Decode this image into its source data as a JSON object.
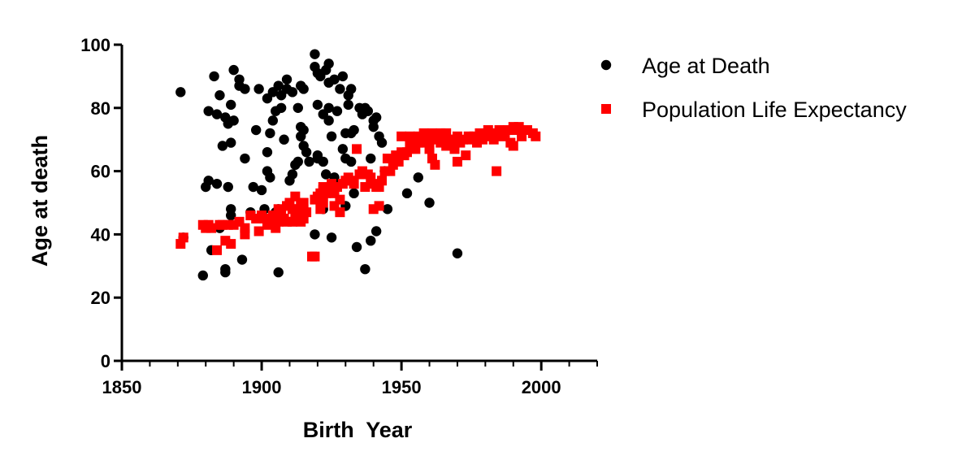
{
  "chart_data": {
    "type": "scatter",
    "xlabel": "Birth  Year",
    "ylabel": "Age at death",
    "xlim": [
      1850,
      2020
    ],
    "ylim": [
      0,
      100
    ],
    "x_ticks": [
      1850,
      1900,
      1950,
      2000
    ],
    "y_ticks": [
      0,
      20,
      40,
      60,
      80,
      100
    ],
    "x_minor_step": 10,
    "grid": false,
    "legend_position": "right",
    "series": [
      {
        "name": "Age at Death",
        "marker": "circle",
        "color": "#000000",
        "points": [
          [
            1871,
            85
          ],
          [
            1872,
            39
          ],
          [
            1879,
            27
          ],
          [
            1880,
            55
          ],
          [
            1881,
            57
          ],
          [
            1881,
            79
          ],
          [
            1882,
            35
          ],
          [
            1883,
            90
          ],
          [
            1884,
            56
          ],
          [
            1884,
            78
          ],
          [
            1885,
            84
          ],
          [
            1885,
            42
          ],
          [
            1886,
            68
          ],
          [
            1887,
            77
          ],
          [
            1887,
            29
          ],
          [
            1887,
            28
          ],
          [
            1888,
            75
          ],
          [
            1888,
            55
          ],
          [
            1889,
            81
          ],
          [
            1889,
            69
          ],
          [
            1889,
            48
          ],
          [
            1889,
            46
          ],
          [
            1890,
            92
          ],
          [
            1890,
            76
          ],
          [
            1892,
            87
          ],
          [
            1892,
            89
          ],
          [
            1893,
            32
          ],
          [
            1894,
            86
          ],
          [
            1894,
            64
          ],
          [
            1896,
            47
          ],
          [
            1897,
            55
          ],
          [
            1898,
            73
          ],
          [
            1899,
            86
          ],
          [
            1900,
            54
          ],
          [
            1901,
            48
          ],
          [
            1902,
            83
          ],
          [
            1902,
            60
          ],
          [
            1902,
            66
          ],
          [
            1903,
            58
          ],
          [
            1903,
            72
          ],
          [
            1904,
            85
          ],
          [
            1904,
            76
          ],
          [
            1905,
            79
          ],
          [
            1905,
            47
          ],
          [
            1906,
            87
          ],
          [
            1906,
            48
          ],
          [
            1906,
            28
          ],
          [
            1907,
            84
          ],
          [
            1907,
            80
          ],
          [
            1908,
            70
          ],
          [
            1909,
            89
          ],
          [
            1909,
            86
          ],
          [
            1910,
            57
          ],
          [
            1911,
            59
          ],
          [
            1911,
            85
          ],
          [
            1912,
            62
          ],
          [
            1913,
            80
          ],
          [
            1913,
            63
          ],
          [
            1914,
            87
          ],
          [
            1914,
            74
          ],
          [
            1914,
            71
          ],
          [
            1915,
            73
          ],
          [
            1915,
            68
          ],
          [
            1915,
            86
          ],
          [
            1916,
            66
          ],
          [
            1917,
            63
          ],
          [
            1919,
            93
          ],
          [
            1919,
            97
          ],
          [
            1919,
            40
          ],
          [
            1920,
            91
          ],
          [
            1920,
            81
          ],
          [
            1920,
            65
          ],
          [
            1920,
            64
          ],
          [
            1921,
            90
          ],
          [
            1922,
            63
          ],
          [
            1922,
            78
          ],
          [
            1922,
            48
          ],
          [
            1923,
            92
          ],
          [
            1923,
            59
          ],
          [
            1924,
            94
          ],
          [
            1924,
            88
          ],
          [
            1924,
            80
          ],
          [
            1924,
            76
          ],
          [
            1925,
            39
          ],
          [
            1925,
            71
          ],
          [
            1926,
            89
          ],
          [
            1926,
            58
          ],
          [
            1926,
            57
          ],
          [
            1927,
            79
          ],
          [
            1928,
            86
          ],
          [
            1929,
            90
          ],
          [
            1929,
            67
          ],
          [
            1930,
            72
          ],
          [
            1930,
            64
          ],
          [
            1930,
            49
          ],
          [
            1931,
            84
          ],
          [
            1931,
            81
          ],
          [
            1932,
            86
          ],
          [
            1932,
            72
          ],
          [
            1932,
            63
          ],
          [
            1933,
            73
          ],
          [
            1933,
            53
          ],
          [
            1934,
            36
          ],
          [
            1935,
            80
          ],
          [
            1936,
            78
          ],
          [
            1937,
            29
          ],
          [
            1937,
            80
          ],
          [
            1938,
            79
          ],
          [
            1939,
            38
          ],
          [
            1939,
            64
          ],
          [
            1940,
            76
          ],
          [
            1940,
            74
          ],
          [
            1941,
            77
          ],
          [
            1941,
            41
          ],
          [
            1942,
            71
          ],
          [
            1943,
            69
          ],
          [
            1944,
            60
          ],
          [
            1945,
            48
          ],
          [
            1952,
            53
          ],
          [
            1956,
            58
          ],
          [
            1960,
            50
          ],
          [
            1970,
            34
          ]
        ]
      },
      {
        "name": "Population Life Expectancy",
        "marker": "square",
        "color": "#ff0000",
        "points": [
          [
            1871,
            37
          ],
          [
            1872,
            39
          ],
          [
            1879,
            43
          ],
          [
            1880,
            42
          ],
          [
            1881,
            43
          ],
          [
            1882,
            42
          ],
          [
            1884,
            35
          ],
          [
            1885,
            43
          ],
          [
            1886,
            43
          ],
          [
            1887,
            38
          ],
          [
            1888,
            43
          ],
          [
            1889,
            37
          ],
          [
            1890,
            43
          ],
          [
            1892,
            44
          ],
          [
            1894,
            40
          ],
          [
            1894,
            42
          ],
          [
            1896,
            46
          ],
          [
            1898,
            45
          ],
          [
            1899,
            41
          ],
          [
            1900,
            46
          ],
          [
            1901,
            45
          ],
          [
            1902,
            43
          ],
          [
            1903,
            44
          ],
          [
            1904,
            46
          ],
          [
            1905,
            42
          ],
          [
            1906,
            48
          ],
          [
            1906,
            44
          ],
          [
            1907,
            47
          ],
          [
            1908,
            45
          ],
          [
            1909,
            49
          ],
          [
            1909,
            44
          ],
          [
            1910,
            50
          ],
          [
            1911,
            48
          ],
          [
            1911,
            44
          ],
          [
            1912,
            52
          ],
          [
            1912,
            46
          ],
          [
            1913,
            48
          ],
          [
            1914,
            49
          ],
          [
            1914,
            44
          ],
          [
            1915,
            50
          ],
          [
            1915,
            45
          ],
          [
            1916,
            47
          ],
          [
            1918,
            33
          ],
          [
            1919,
            51
          ],
          [
            1919,
            33
          ],
          [
            1920,
            52
          ],
          [
            1921,
            53
          ],
          [
            1921,
            48
          ],
          [
            1922,
            55
          ],
          [
            1922,
            54
          ],
          [
            1922,
            50
          ],
          [
            1923,
            53
          ],
          [
            1924,
            54
          ],
          [
            1925,
            56
          ],
          [
            1926,
            53
          ],
          [
            1926,
            49
          ],
          [
            1927,
            55
          ],
          [
            1928,
            51
          ],
          [
            1928,
            47
          ],
          [
            1929,
            56
          ],
          [
            1930,
            57
          ],
          [
            1931,
            58
          ],
          [
            1932,
            57
          ],
          [
            1933,
            56
          ],
          [
            1934,
            67
          ],
          [
            1935,
            59
          ],
          [
            1936,
            60
          ],
          [
            1937,
            55
          ],
          [
            1938,
            59
          ],
          [
            1939,
            58
          ],
          [
            1940,
            56
          ],
          [
            1940,
            48
          ],
          [
            1941,
            55
          ],
          [
            1942,
            49
          ],
          [
            1942,
            55
          ],
          [
            1943,
            57
          ],
          [
            1944,
            60
          ],
          [
            1945,
            64
          ],
          [
            1946,
            60
          ],
          [
            1947,
            62
          ],
          [
            1948,
            65
          ],
          [
            1949,
            63
          ],
          [
            1950,
            66
          ],
          [
            1950,
            71
          ],
          [
            1951,
            65
          ],
          [
            1952,
            66
          ],
          [
            1953,
            68
          ],
          [
            1953,
            71
          ],
          [
            1954,
            68
          ],
          [
            1955,
            67
          ],
          [
            1956,
            69
          ],
          [
            1956,
            71
          ],
          [
            1957,
            70
          ],
          [
            1958,
            69
          ],
          [
            1958,
            72
          ],
          [
            1959,
            71
          ],
          [
            1960,
            67
          ],
          [
            1960,
            70
          ],
          [
            1961,
            72
          ],
          [
            1961,
            64
          ],
          [
            1962,
            70
          ],
          [
            1962,
            62
          ],
          [
            1963,
            71
          ],
          [
            1964,
            69
          ],
          [
            1964,
            72
          ],
          [
            1965,
            71
          ],
          [
            1966,
            68
          ],
          [
            1966,
            72
          ],
          [
            1967,
            70
          ],
          [
            1968,
            70
          ],
          [
            1969,
            67
          ],
          [
            1970,
            71
          ],
          [
            1970,
            63
          ],
          [
            1971,
            69
          ],
          [
            1972,
            70
          ],
          [
            1973,
            65
          ],
          [
            1974,
            71
          ],
          [
            1975,
            70
          ],
          [
            1976,
            71
          ],
          [
            1977,
            69
          ],
          [
            1978,
            72
          ],
          [
            1979,
            70
          ],
          [
            1980,
            71
          ],
          [
            1981,
            73
          ],
          [
            1982,
            72
          ],
          [
            1983,
            70
          ],
          [
            1984,
            60
          ],
          [
            1984,
            72
          ],
          [
            1985,
            73
          ],
          [
            1986,
            71
          ],
          [
            1987,
            72
          ],
          [
            1988,
            73
          ],
          [
            1989,
            69
          ],
          [
            1990,
            74
          ],
          [
            1990,
            68
          ],
          [
            1991,
            73
          ],
          [
            1992,
            74
          ],
          [
            1993,
            71
          ],
          [
            1995,
            73
          ],
          [
            1997,
            72
          ],
          [
            1998,
            71
          ]
        ]
      }
    ]
  }
}
